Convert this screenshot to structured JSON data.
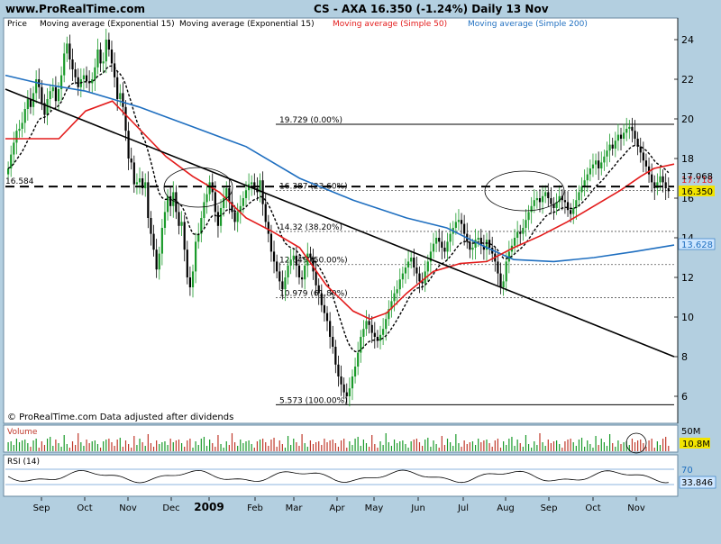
{
  "header": {
    "site": "www.ProRealTime.com",
    "title": "CS - AXA    16.350 (-1.24%)    Daily  13 Nov"
  },
  "legend": [
    {
      "label": "Price",
      "color": "#000000"
    },
    {
      "label": "Moving average (Exponential 15)",
      "color": "#000000"
    },
    {
      "label": "Moving average (Exponential 15)",
      "color": "#000000"
    },
    {
      "label": "Moving average (Simple 50)",
      "color": "#e31b1b"
    },
    {
      "label": "Moving average (Simple 200)",
      "color": "#1f6fc0"
    }
  ],
  "footer_note": "© ProRealTime.com  Data adjusted after dividends",
  "colors": {
    "up": "#1a9a2a",
    "down": "#000000",
    "ema": "#000000",
    "sma50": "#e31b1b",
    "sma200": "#1f6fc0",
    "panel_bg": "#ffffff",
    "frame_bg": "#b3cfe0",
    "label_yellow": "#f2e400",
    "label_cyan": "#cfe7ff"
  },
  "chart_data": {
    "type": "candlestick",
    "y_ticks": [
      "24",
      "22",
      "20",
      "18",
      "16",
      "14",
      "12",
      "10",
      "8",
      "6"
    ],
    "ylim": [
      5,
      25
    ],
    "x_ticks": [
      "Sep",
      "Oct",
      "Nov",
      "Dec",
      "2009",
      "Feb",
      "Mar",
      "Apr",
      "May",
      "Jun",
      "Jul",
      "Aug",
      "Sep",
      "Oct",
      "Nov"
    ],
    "x_bold": "2009",
    "left_label": "16.584",
    "right_labels": [
      {
        "text": "17.718",
        "value": 17.718,
        "style": "red"
      },
      {
        "text": "17.068",
        "value": 17.068,
        "style": "plain"
      },
      {
        "text": "16.350",
        "value": 16.35,
        "style": "yellow"
      },
      {
        "text": "13.628",
        "value": 13.628,
        "style": "blue"
      }
    ],
    "fibonacci": [
      {
        "label": "19.729 (0.00%)",
        "value": 19.729
      },
      {
        "label": "16.387 (23.60%)",
        "value": 16.387
      },
      {
        "label": "14.32 (38.20%)",
        "value": 14.32
      },
      {
        "label": "12.649 (50.00%)",
        "value": 12.649
      },
      {
        "label": "10.979 (61.80%)",
        "value": 10.979
      },
      {
        "label": "5.573 (100.00%)",
        "value": 5.573
      }
    ],
    "horizontal_line": 16.584,
    "trendline": [
      [
        0,
        21.5
      ],
      [
        1,
        8.0
      ]
    ],
    "closes": [
      17.5,
      18.2,
      18.8,
      19.4,
      19.5,
      19.8,
      20.5,
      21.0,
      20.6,
      21.3,
      22.0,
      21.6,
      20.8,
      20.2,
      21.0,
      21.4,
      21.6,
      20.9,
      21.5,
      22.2,
      23.3,
      23.8,
      23.0,
      22.5,
      22.1,
      21.6,
      22.0,
      22.2,
      21.9,
      21.8,
      22.0,
      22.6,
      23.5,
      22.8,
      22.9,
      24.0,
      23.5,
      22.8,
      22.1,
      21.0,
      21.3,
      20.6,
      19.4,
      18.0,
      17.8,
      16.7,
      16.8,
      17.0,
      16.5,
      16.8,
      15.0,
      14.2,
      13.4,
      12.4,
      13.2,
      14.5,
      15.3,
      16.1,
      15.6,
      16.3,
      15.3,
      14.6,
      14.8,
      13.4,
      12.0,
      11.5,
      12.3,
      13.8,
      14.2,
      15.0,
      15.8,
      16.2,
      16.8,
      16.3,
      15.3,
      14.6,
      15.5,
      16.0,
      16.5,
      15.8,
      15.3,
      14.8,
      15.3,
      15.6,
      16.0,
      16.4,
      16.7,
      16.8,
      16.5,
      16.3,
      16.9,
      15.7,
      14.8,
      14.2,
      13.3,
      12.8,
      12.3,
      11.8,
      11.4,
      12.0,
      12.6,
      12.9,
      13.1,
      12.6,
      12.0,
      11.9,
      12.6,
      13.2,
      13.0,
      12.3,
      11.6,
      11.2,
      10.6,
      10.2,
      9.8,
      9.0,
      8.5,
      7.6,
      7.0,
      6.6,
      6.2,
      6.0,
      6.4,
      7.0,
      7.5,
      8.2,
      9.0,
      9.4,
      9.8,
      9.6,
      9.2,
      9.0,
      8.8,
      9.1,
      9.4,
      9.9,
      10.4,
      10.8,
      11.2,
      11.4,
      11.9,
      12.2,
      12.5,
      12.8,
      13.0,
      12.5,
      12.2,
      11.8,
      11.7,
      12.3,
      12.8,
      13.3,
      13.7,
      14.0,
      13.8,
      13.5,
      13.3,
      13.8,
      14.2,
      14.5,
      14.8,
      14.9,
      14.7,
      14.2,
      13.8,
      13.4,
      13.5,
      13.9,
      14.0,
      13.6,
      13.4,
      13.9,
      13.5,
      13.2,
      12.8,
      12.2,
      11.5,
      11.8,
      12.8,
      13.3,
      13.6,
      14.0,
      14.3,
      14.2,
      14.5,
      14.9,
      15.3,
      15.6,
      15.9,
      16.0,
      15.8,
      16.1,
      16.3,
      16.0,
      15.7,
      15.5,
      15.8,
      16.1,
      15.9,
      15.8,
      15.4,
      15.2,
      15.5,
      15.9,
      16.3,
      16.6,
      16.9,
      17.2,
      17.5,
      17.7,
      17.9,
      17.5,
      17.8,
      18.1,
      18.4,
      18.7,
      18.5,
      18.9,
      19.2,
      19.0,
      19.3,
      19.5,
      19.6,
      19.4,
      19.0,
      18.6,
      18.3,
      17.9,
      17.6,
      17.2,
      16.8,
      16.5,
      16.8,
      17.1,
      16.8,
      16.5,
      16.35
    ],
    "sma200": [
      [
        0.0,
        22.2
      ],
      [
        0.05,
        21.8
      ],
      [
        0.12,
        21.4
      ],
      [
        0.2,
        20.6
      ],
      [
        0.28,
        19.6
      ],
      [
        0.36,
        18.6
      ],
      [
        0.44,
        17.0
      ],
      [
        0.52,
        15.9
      ],
      [
        0.6,
        15.0
      ],
      [
        0.66,
        14.5
      ],
      [
        0.72,
        13.5
      ],
      [
        0.76,
        12.9
      ],
      [
        0.82,
        12.8
      ],
      [
        0.88,
        13.0
      ],
      [
        0.94,
        13.3
      ],
      [
        1.0,
        13.63
      ]
    ],
    "sma50": [
      [
        0.0,
        19.0
      ],
      [
        0.04,
        19.0
      ],
      [
        0.08,
        19.0
      ],
      [
        0.12,
        20.4
      ],
      [
        0.16,
        20.9
      ],
      [
        0.2,
        19.5
      ],
      [
        0.24,
        18.1
      ],
      [
        0.28,
        17.1
      ],
      [
        0.32,
        16.3
      ],
      [
        0.36,
        15.0
      ],
      [
        0.4,
        14.3
      ],
      [
        0.44,
        13.5
      ],
      [
        0.48,
        11.6
      ],
      [
        0.52,
        10.3
      ],
      [
        0.545,
        9.9
      ],
      [
        0.57,
        10.2
      ],
      [
        0.6,
        11.2
      ],
      [
        0.64,
        12.3
      ],
      [
        0.68,
        12.7
      ],
      [
        0.72,
        12.8
      ],
      [
        0.76,
        13.5
      ],
      [
        0.8,
        14.1
      ],
      [
        0.84,
        14.8
      ],
      [
        0.88,
        15.6
      ],
      [
        0.92,
        16.4
      ],
      [
        0.95,
        17.1
      ],
      [
        0.97,
        17.5
      ],
      [
        1.0,
        17.72
      ]
    ],
    "volume": {
      "label": "Volume",
      "max_label": "50M",
      "last_label": "10.8M"
    },
    "rsi": {
      "label": "RSI (14)",
      "level_label": "70",
      "value_label": "33.846"
    }
  }
}
